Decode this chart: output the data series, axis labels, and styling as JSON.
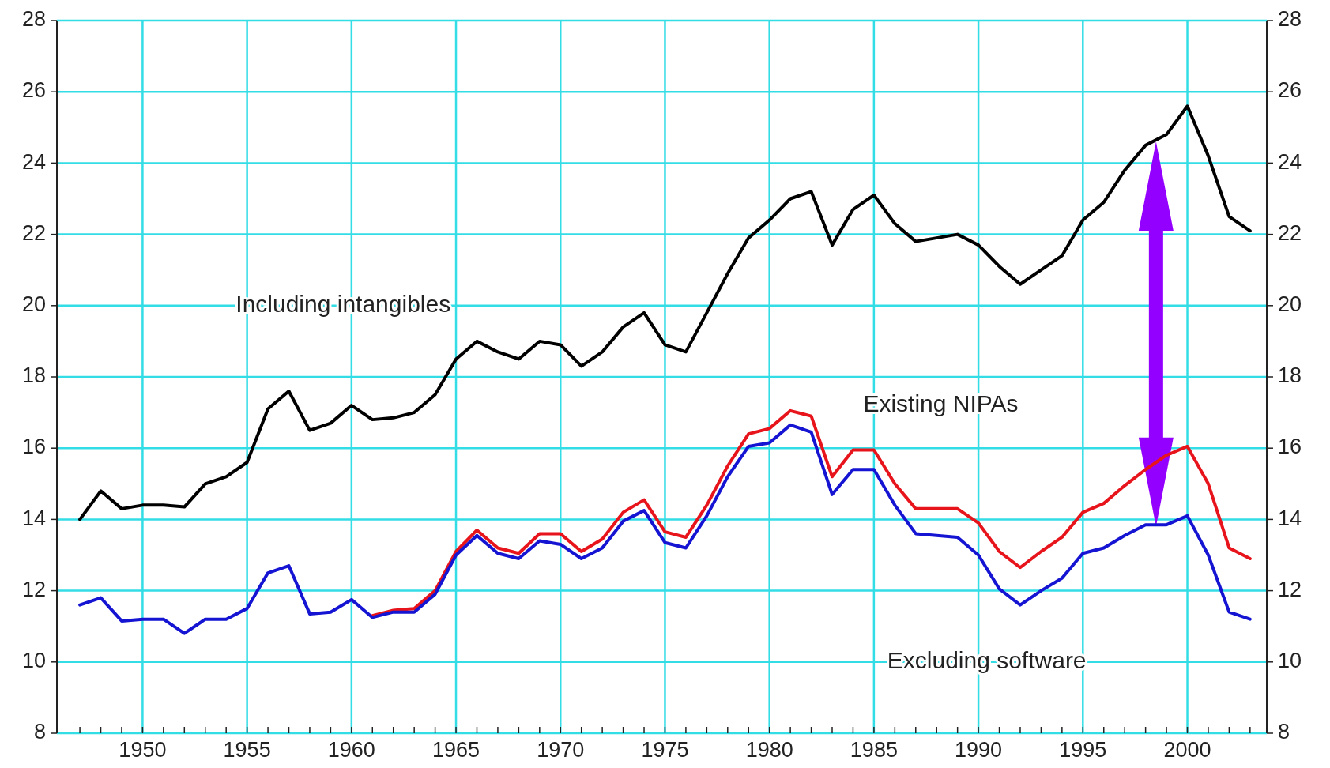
{
  "chart_data": {
    "type": "line",
    "x": [
      1947,
      1948,
      1949,
      1950,
      1951,
      1952,
      1953,
      1954,
      1955,
      1956,
      1957,
      1958,
      1959,
      1960,
      1961,
      1962,
      1963,
      1964,
      1965,
      1966,
      1967,
      1968,
      1969,
      1970,
      1971,
      1972,
      1973,
      1974,
      1975,
      1976,
      1977,
      1978,
      1979,
      1980,
      1981,
      1982,
      1983,
      1984,
      1985,
      1986,
      1987,
      1988,
      1989,
      1990,
      1991,
      1992,
      1993,
      1994,
      1995,
      1996,
      1997,
      1998,
      1999,
      2000,
      2001,
      2002,
      2003
    ],
    "series": [
      {
        "name": "Including intangibles",
        "color": "#000000",
        "values": [
          14.0,
          14.8,
          14.3,
          14.4,
          14.4,
          14.35,
          15.0,
          15.2,
          15.6,
          17.1,
          17.6,
          16.5,
          16.7,
          17.2,
          16.8,
          16.85,
          17.0,
          17.5,
          18.5,
          19.0,
          18.7,
          18.5,
          19.0,
          18.9,
          18.3,
          18.7,
          19.4,
          19.8,
          18.9,
          18.7,
          19.8,
          20.9,
          21.9,
          22.4,
          23.0,
          23.2,
          21.7,
          22.7,
          23.1,
          22.3,
          21.8,
          21.9,
          22.0,
          21.7,
          21.1,
          20.6,
          21.0,
          21.4,
          22.4,
          22.9,
          23.8,
          24.5,
          24.8,
          25.6,
          24.2,
          22.5,
          22.1
        ]
      },
      {
        "name": "Existing NIPAs",
        "color": "#e8141c",
        "values": [
          null,
          null,
          null,
          null,
          null,
          null,
          null,
          null,
          null,
          null,
          null,
          null,
          null,
          null,
          11.3,
          11.45,
          11.5,
          12.0,
          13.1,
          13.7,
          13.2,
          13.05,
          13.6,
          13.6,
          13.1,
          13.45,
          14.2,
          14.55,
          13.65,
          13.5,
          14.4,
          15.5,
          16.4,
          16.55,
          17.05,
          16.9,
          15.2,
          15.95,
          15.95,
          15.0,
          14.3,
          14.3,
          14.3,
          13.9,
          13.1,
          12.65,
          13.1,
          13.5,
          14.2,
          14.45,
          14.95,
          15.4,
          15.8,
          16.05,
          15.0,
          13.2,
          12.9
        ]
      },
      {
        "name": "Excluding software",
        "color": "#1414d2",
        "values": [
          11.6,
          11.8,
          11.15,
          11.2,
          11.2,
          10.8,
          11.2,
          11.2,
          11.5,
          12.5,
          12.7,
          11.35,
          11.4,
          11.75,
          11.25,
          11.4,
          11.4,
          11.9,
          13.0,
          13.55,
          13.05,
          12.9,
          13.4,
          13.3,
          12.9,
          13.2,
          13.95,
          14.25,
          13.35,
          13.2,
          14.1,
          15.2,
          16.05,
          16.15,
          16.65,
          16.45,
          14.7,
          15.4,
          15.4,
          14.4,
          13.6,
          13.55,
          13.5,
          13.0,
          12.05,
          11.6,
          12.0,
          12.35,
          13.05,
          13.2,
          13.55,
          13.85,
          13.85,
          14.1,
          13.0,
          11.4,
          11.2
        ]
      }
    ],
    "xlim": [
      1945.9,
      2003.8
    ],
    "xticks": [
      {
        "value": 1947,
        "label": null
      },
      {
        "value": 1948,
        "label": null
      },
      {
        "value": 1949,
        "label": null
      },
      1950,
      {
        "value": 1951,
        "label": null
      },
      {
        "value": 1952,
        "label": null
      },
      {
        "value": 1953,
        "label": null
      },
      {
        "value": 1954,
        "label": null
      },
      1955,
      {
        "value": 1956,
        "label": null
      },
      {
        "value": 1957,
        "label": null
      },
      {
        "value": 1958,
        "label": null
      },
      {
        "value": 1959,
        "label": null
      },
      1960,
      {
        "value": 1961,
        "label": null
      },
      {
        "value": 1962,
        "label": null
      },
      {
        "value": 1963,
        "label": null
      },
      {
        "value": 1964,
        "label": null
      },
      1965,
      {
        "value": 1966,
        "label": null
      },
      {
        "value": 1967,
        "label": null
      },
      {
        "value": 1968,
        "label": null
      },
      {
        "value": 1969,
        "label": null
      },
      1970,
      {
        "value": 1971,
        "label": null
      },
      {
        "value": 1972,
        "label": null
      },
      {
        "value": 1973,
        "label": null
      },
      {
        "value": 1974,
        "label": null
      },
      1975,
      {
        "value": 1976,
        "label": null
      },
      {
        "value": 1977,
        "label": null
      },
      {
        "value": 1978,
        "label": null
      },
      {
        "value": 1979,
        "label": null
      },
      1980,
      {
        "value": 1981,
        "label": null
      },
      {
        "value": 1982,
        "label": null
      },
      {
        "value": 1983,
        "label": null
      },
      {
        "value": 1984,
        "label": null
      },
      1985,
      {
        "value": 1986,
        "label": null
      },
      {
        "value": 1987,
        "label": null
      },
      {
        "value": 1988,
        "label": null
      },
      {
        "value": 1989,
        "label": null
      },
      1990,
      {
        "value": 1991,
        "label": null
      },
      {
        "value": 1992,
        "label": null
      },
      {
        "value": 1993,
        "label": null
      },
      {
        "value": 1994,
        "label": null
      },
      1995,
      {
        "value": 1996,
        "label": null
      },
      {
        "value": 1997,
        "label": null
      },
      {
        "value": 1998,
        "label": null
      },
      {
        "value": 1999,
        "label": null
      },
      2000,
      {
        "value": 2001,
        "label": null
      },
      {
        "value": 2002,
        "label": null
      },
      {
        "value": 2003,
        "label": null
      }
    ],
    "ylim": [
      8,
      28
    ],
    "yticks": [
      8,
      10,
      12,
      14,
      16,
      18,
      20,
      22,
      24,
      26,
      28
    ],
    "y2lim": [
      8,
      28
    ],
    "y2ticks": [
      8,
      10,
      12,
      14,
      16,
      18,
      20,
      22,
      24,
      26,
      28
    ],
    "grid": true,
    "line_style": "solid",
    "marker": "none"
  }
}
